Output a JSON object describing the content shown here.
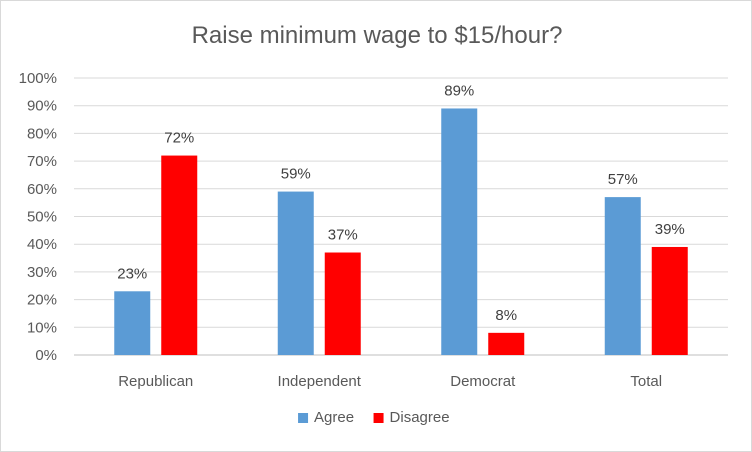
{
  "chart_data": {
    "type": "bar",
    "title": "Raise minimum wage to $15/hour?",
    "xlabel": "",
    "ylabel": "",
    "categories": [
      "Republican",
      "Independent",
      "Democrat",
      "Total"
    ],
    "series": [
      {
        "name": "Agree",
        "color": "#5b9bd5",
        "values": [
          23,
          59,
          89,
          57
        ],
        "labels": [
          "23%",
          "59%",
          "89%",
          "57%"
        ]
      },
      {
        "name": "Disagree",
        "color": "#ff0000",
        "values": [
          72,
          37,
          8,
          39
        ],
        "labels": [
          "72%",
          "37%",
          "8%",
          "39%"
        ]
      }
    ],
    "ylim": [
      0,
      100
    ],
    "yticks": [
      0,
      10,
      20,
      30,
      40,
      50,
      60,
      70,
      80,
      90,
      100
    ],
    "ytick_labels": [
      "0%",
      "10%",
      "20%",
      "30%",
      "40%",
      "50%",
      "60%",
      "70%",
      "80%",
      "90%",
      "100%"
    ],
    "grid": true,
    "legend_position": "bottom"
  }
}
